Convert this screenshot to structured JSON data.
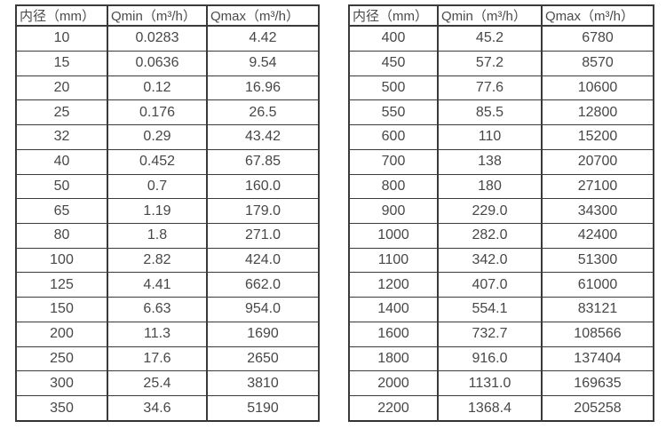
{
  "colors": {
    "background": "#ffffff",
    "border": "#333333",
    "text": "#474747"
  },
  "table_left": {
    "headers": [
      "内径（mm）",
      "Qmin（m³/h）",
      "Qmax（m³/h）"
    ],
    "rows": [
      [
        "10",
        "0.0283",
        "4.42"
      ],
      [
        "15",
        "0.0636",
        "9.54"
      ],
      [
        "20",
        "0.12",
        "16.96"
      ],
      [
        "25",
        "0.176",
        "26.5"
      ],
      [
        "32",
        "0.29",
        "43.42"
      ],
      [
        "40",
        "0.452",
        "67.85"
      ],
      [
        "50",
        "0.7",
        "160.0"
      ],
      [
        "65",
        "1.19",
        "179.0"
      ],
      [
        "80",
        "1.8",
        "271.0"
      ],
      [
        "100",
        "2.82",
        "424.0"
      ],
      [
        "125",
        "4.41",
        "662.0"
      ],
      [
        "150",
        "6.63",
        "954.0"
      ],
      [
        "200",
        "11.3",
        "1690"
      ],
      [
        "250",
        "17.6",
        "2650"
      ],
      [
        "300",
        "25.4",
        "3810"
      ],
      [
        "350",
        "34.6",
        "5190"
      ]
    ]
  },
  "table_right": {
    "headers": [
      "内径（mm）",
      "Qmin（m³/h）",
      "Qmax（m³/h）"
    ],
    "rows": [
      [
        "400",
        "45.2",
        "6780"
      ],
      [
        "450",
        "57.2",
        "8570"
      ],
      [
        "500",
        "77.6",
        "10600"
      ],
      [
        "550",
        "85.5",
        "12800"
      ],
      [
        "600",
        "110",
        "15200"
      ],
      [
        "700",
        "138",
        "20700"
      ],
      [
        "800",
        "180",
        "27100"
      ],
      [
        "900",
        "229.0",
        "34300"
      ],
      [
        "1000",
        "282.0",
        "42400"
      ],
      [
        "1100",
        "342.0",
        "51300"
      ],
      [
        "1200",
        "407.0",
        "61000"
      ],
      [
        "1400",
        "554.1",
        "83121"
      ],
      [
        "1600",
        "732.7",
        "108566"
      ],
      [
        "1800",
        "916.0",
        "137404"
      ],
      [
        "2000",
        "1131.0",
        "169635"
      ],
      [
        "2200",
        "1368.4",
        "205258"
      ]
    ]
  }
}
